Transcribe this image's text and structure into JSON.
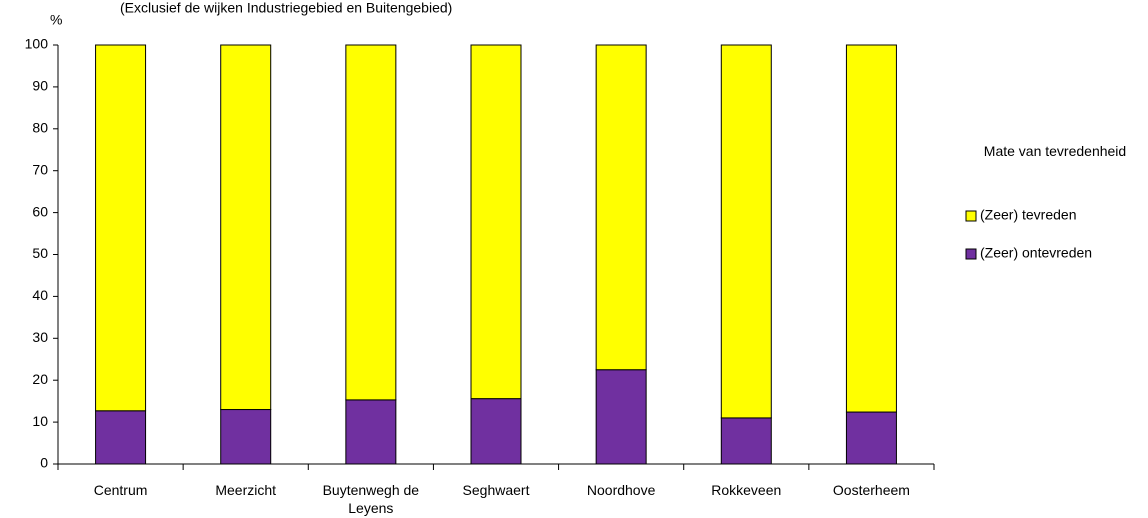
{
  "chart_data": {
    "type": "stacked_bar",
    "subtitle": "(Exclusief de wijken Industriegebied en Buitengebied)",
    "y_label": "%",
    "legend_title": "Mate van tevredenheid",
    "categories": [
      "Centrum",
      "Meerzicht",
      "Buytenwegh de Leyens",
      "Seghwaert",
      "Noordhove",
      "Rokkeveen",
      "Oosterheem"
    ],
    "series": [
      {
        "name": "(Zeer) ontevreden",
        "color": "#7030a0",
        "values": [
          12.7,
          13,
          15.3,
          15.6,
          22.5,
          11,
          12.4
        ]
      },
      {
        "name": "(Zeer) tevreden",
        "color": "#ffff00",
        "values": [
          87.3,
          87,
          84.7,
          84.4,
          77.5,
          89,
          87.6
        ]
      }
    ],
    "ylim": [
      0,
      100
    ],
    "yticks": [
      0,
      10,
      20,
      30,
      40,
      50,
      60,
      70,
      80,
      90,
      100
    ],
    "legend": "right"
  }
}
